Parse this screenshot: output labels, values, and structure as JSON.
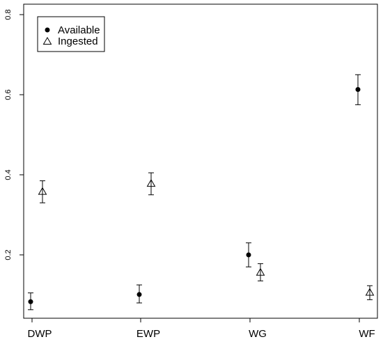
{
  "chart_data": {
    "type": "scatter",
    "title": "",
    "xlabel": "",
    "ylabel": "",
    "categories": [
      "DWP",
      "EWP",
      "WG",
      "WF"
    ],
    "ylim": [
      0.05,
      0.82
    ],
    "y_ticks": [
      "0.2",
      "0.4",
      "0.6",
      "0.8"
    ],
    "grid": false,
    "legend_position": "top-left",
    "series": [
      {
        "name": "Available",
        "marker": "filled-circle",
        "values": [
          0.083,
          0.101,
          0.2,
          0.613
        ],
        "error_low": [
          0.063,
          0.08,
          0.17,
          0.575
        ],
        "error_high": [
          0.105,
          0.125,
          0.23,
          0.65
        ]
      },
      {
        "name": "Ingested",
        "marker": "open-triangle",
        "values": [
          0.358,
          0.378,
          0.156,
          0.106
        ],
        "error_low": [
          0.33,
          0.35,
          0.135,
          0.088
        ],
        "error_high": [
          0.385,
          0.405,
          0.178,
          0.123
        ]
      }
    ],
    "colors": {
      "axis": "#000000",
      "marker": "#000000"
    }
  }
}
